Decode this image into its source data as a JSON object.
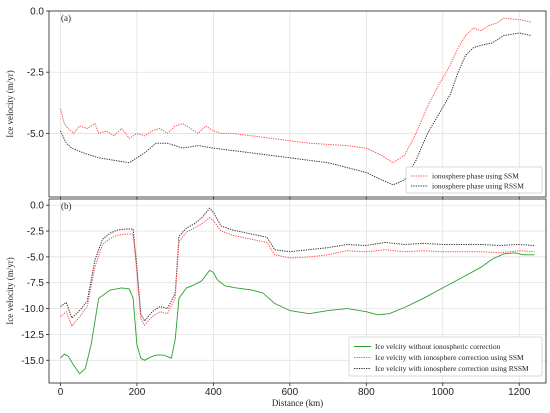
{
  "chart_data": [
    {
      "panel": "(a)",
      "type": "line",
      "xlabel": "",
      "ylabel": "Ice velocity (m/yr)",
      "xlim": [
        -30,
        1270
      ],
      "ylim": [
        -7.6,
        0.0
      ],
      "yticks": [
        0.0,
        -2.5,
        -5.0
      ],
      "ytick_labels": [
        "0.0",
        "-2.5",
        "-5.0"
      ],
      "xticks": [
        0,
        200,
        400,
        600,
        800,
        1000,
        1200
      ],
      "grid": true,
      "legend_position": "lower-right",
      "series": [
        {
          "name": "ionosphere phase using SSM",
          "color": "#ff4d4d",
          "style": "dotted",
          "points": [
            [
              0,
              -4.0
            ],
            [
              10,
              -4.6
            ],
            [
              20,
              -4.8
            ],
            [
              35,
              -5.0
            ],
            [
              50,
              -4.7
            ],
            [
              70,
              -4.8
            ],
            [
              90,
              -4.6
            ],
            [
              100,
              -5.0
            ],
            [
              120,
              -4.9
            ],
            [
              140,
              -5.1
            ],
            [
              160,
              -4.8
            ],
            [
              180,
              -5.2
            ],
            [
              200,
              -5.0
            ],
            [
              220,
              -5.1
            ],
            [
              240,
              -4.9
            ],
            [
              260,
              -4.8
            ],
            [
              280,
              -5.0
            ],
            [
              300,
              -4.7
            ],
            [
              320,
              -4.6
            ],
            [
              340,
              -4.8
            ],
            [
              360,
              -5.0
            ],
            [
              380,
              -4.7
            ],
            [
              400,
              -4.9
            ],
            [
              420,
              -5.0
            ],
            [
              450,
              -5.0
            ],
            [
              500,
              -5.1
            ],
            [
              550,
              -5.2
            ],
            [
              600,
              -5.3
            ],
            [
              650,
              -5.4
            ],
            [
              700,
              -5.45
            ],
            [
              750,
              -5.5
            ],
            [
              800,
              -5.6
            ],
            [
              840,
              -5.9
            ],
            [
              870,
              -6.2
            ],
            [
              900,
              -5.9
            ],
            [
              930,
              -5.0
            ],
            [
              960,
              -3.9
            ],
            [
              990,
              -3.0
            ],
            [
              1020,
              -2.2
            ],
            [
              1040,
              -1.5
            ],
            [
              1060,
              -1.0
            ],
            [
              1080,
              -0.7
            ],
            [
              1100,
              -0.8
            ],
            [
              1120,
              -0.6
            ],
            [
              1140,
              -0.5
            ],
            [
              1160,
              -0.3
            ],
            [
              1200,
              -0.35
            ],
            [
              1230,
              -0.45
            ]
          ]
        },
        {
          "name": "ionosphere phase using RSSM",
          "color": "#333333",
          "style": "dotted",
          "points": [
            [
              0,
              -4.9
            ],
            [
              15,
              -5.4
            ],
            [
              30,
              -5.6
            ],
            [
              60,
              -5.8
            ],
            [
              100,
              -6.0
            ],
            [
              140,
              -6.1
            ],
            [
              180,
              -6.2
            ],
            [
              220,
              -5.8
            ],
            [
              250,
              -5.4
            ],
            [
              280,
              -5.4
            ],
            [
              320,
              -5.6
            ],
            [
              360,
              -5.5
            ],
            [
              400,
              -5.6
            ],
            [
              450,
              -5.7
            ],
            [
              500,
              -5.8
            ],
            [
              550,
              -5.9
            ],
            [
              600,
              -6.0
            ],
            [
              650,
              -6.1
            ],
            [
              700,
              -6.2
            ],
            [
              750,
              -6.4
            ],
            [
              800,
              -6.6
            ],
            [
              840,
              -6.9
            ],
            [
              870,
              -7.1
            ],
            [
              900,
              -6.9
            ],
            [
              930,
              -6.1
            ],
            [
              960,
              -5.0
            ],
            [
              990,
              -4.2
            ],
            [
              1020,
              -3.4
            ],
            [
              1040,
              -2.5
            ],
            [
              1060,
              -1.8
            ],
            [
              1080,
              -1.5
            ],
            [
              1100,
              -1.4
            ],
            [
              1130,
              -1.3
            ],
            [
              1160,
              -1.0
            ],
            [
              1200,
              -0.9
            ],
            [
              1230,
              -1.0
            ]
          ]
        }
      ]
    },
    {
      "panel": "(b)",
      "type": "line",
      "xlabel": "Distance (km)",
      "ylabel": "Ice velocity (m/yr)",
      "xlim": [
        -30,
        1270
      ],
      "ylim": [
        -17.2,
        0.6
      ],
      "yticks": [
        0.0,
        -2.5,
        -5.0,
        -7.5,
        -10.0,
        -12.5,
        -15.0
      ],
      "ytick_labels": [
        "0.0",
        "-2.5",
        "-5.0",
        "-7.5",
        "-10.0",
        "-12.5",
        "-15.0"
      ],
      "xticks": [
        0,
        200,
        400,
        600,
        800,
        1000,
        1200
      ],
      "xtick_labels": [
        "0",
        "200",
        "400",
        "600",
        "800",
        "1000",
        "1200"
      ],
      "grid": true,
      "legend_position": "lower-right",
      "series": [
        {
          "name": "Ice velcity without ionospheric correction",
          "color": "#2ca02c",
          "style": "solid",
          "points": [
            [
              0,
              -14.8
            ],
            [
              10,
              -14.4
            ],
            [
              20,
              -14.6
            ],
            [
              35,
              -15.5
            ],
            [
              50,
              -16.3
            ],
            [
              65,
              -15.8
            ],
            [
              80,
              -13.5
            ],
            [
              100,
              -9.0
            ],
            [
              130,
              -8.2
            ],
            [
              160,
              -8.0
            ],
            [
              180,
              -8.1
            ],
            [
              190,
              -9.0
            ],
            [
              200,
              -13.5
            ],
            [
              210,
              -14.8
            ],
            [
              220,
              -15.0
            ],
            [
              235,
              -14.7
            ],
            [
              250,
              -14.5
            ],
            [
              270,
              -14.5
            ],
            [
              290,
              -14.8
            ],
            [
              300,
              -13.0
            ],
            [
              310,
              -9.0
            ],
            [
              330,
              -8.0
            ],
            [
              350,
              -7.7
            ],
            [
              370,
              -7.3
            ],
            [
              390,
              -6.3
            ],
            [
              400,
              -6.5
            ],
            [
              410,
              -7.2
            ],
            [
              430,
              -7.8
            ],
            [
              460,
              -8.0
            ],
            [
              500,
              -8.2
            ],
            [
              530,
              -8.5
            ],
            [
              560,
              -9.5
            ],
            [
              600,
              -10.2
            ],
            [
              650,
              -10.5
            ],
            [
              700,
              -10.2
            ],
            [
              750,
              -10.0
            ],
            [
              800,
              -10.3
            ],
            [
              830,
              -10.6
            ],
            [
              860,
              -10.5
            ],
            [
              900,
              -9.9
            ],
            [
              950,
              -9.0
            ],
            [
              1000,
              -8.0
            ],
            [
              1050,
              -7.0
            ],
            [
              1100,
              -6.0
            ],
            [
              1130,
              -5.2
            ],
            [
              1160,
              -4.7
            ],
            [
              1190,
              -4.6
            ],
            [
              1210,
              -4.8
            ],
            [
              1240,
              -4.8
            ]
          ]
        },
        {
          "name": "Ice velcity with ionosphere correction using SSM",
          "color": "#ff4d4d",
          "style": "dotted",
          "points": [
            [
              0,
              -10.8
            ],
            [
              15,
              -10.3
            ],
            [
              30,
              -11.7
            ],
            [
              50,
              -10.8
            ],
            [
              70,
              -9.8
            ],
            [
              90,
              -6.0
            ],
            [
              110,
              -3.8
            ],
            [
              130,
              -3.2
            ],
            [
              150,
              -2.9
            ],
            [
              170,
              -2.8
            ],
            [
              190,
              -2.8
            ],
            [
              200,
              -6.5
            ],
            [
              210,
              -11.0
            ],
            [
              220,
              -11.6
            ],
            [
              240,
              -10.8
            ],
            [
              260,
              -10.3
            ],
            [
              280,
              -10.5
            ],
            [
              300,
              -9.0
            ],
            [
              310,
              -3.5
            ],
            [
              330,
              -2.6
            ],
            [
              350,
              -2.2
            ],
            [
              370,
              -1.8
            ],
            [
              390,
              -1.2
            ],
            [
              400,
              -1.5
            ],
            [
              420,
              -2.5
            ],
            [
              450,
              -2.9
            ],
            [
              500,
              -3.3
            ],
            [
              540,
              -3.6
            ],
            [
              560,
              -4.8
            ],
            [
              600,
              -5.1
            ],
            [
              650,
              -5.0
            ],
            [
              700,
              -4.8
            ],
            [
              750,
              -4.4
            ],
            [
              800,
              -4.5
            ],
            [
              850,
              -4.3
            ],
            [
              900,
              -4.5
            ],
            [
              950,
              -4.4
            ],
            [
              1000,
              -4.5
            ],
            [
              1050,
              -4.5
            ],
            [
              1100,
              -4.5
            ],
            [
              1150,
              -4.6
            ],
            [
              1200,
              -4.4
            ],
            [
              1240,
              -4.5
            ]
          ]
        },
        {
          "name": "Ice velcity with ionosphere correction using RSSM",
          "color": "#333333",
          "style": "dotted",
          "points": [
            [
              0,
              -9.8
            ],
            [
              15,
              -9.4
            ],
            [
              30,
              -10.9
            ],
            [
              50,
              -10.2
            ],
            [
              70,
              -9.3
            ],
            [
              90,
              -5.3
            ],
            [
              110,
              -3.3
            ],
            [
              130,
              -2.7
            ],
            [
              150,
              -2.4
            ],
            [
              170,
              -2.3
            ],
            [
              190,
              -2.3
            ],
            [
              200,
              -6.0
            ],
            [
              210,
              -10.5
            ],
            [
              220,
              -11.2
            ],
            [
              240,
              -10.3
            ],
            [
              260,
              -9.8
            ],
            [
              280,
              -10.0
            ],
            [
              300,
              -8.5
            ],
            [
              310,
              -3.0
            ],
            [
              330,
              -2.2
            ],
            [
              350,
              -1.8
            ],
            [
              370,
              -1.2
            ],
            [
              390,
              -0.3
            ],
            [
              400,
              -0.7
            ],
            [
              420,
              -2.0
            ],
            [
              450,
              -2.4
            ],
            [
              500,
              -2.8
            ],
            [
              540,
              -3.1
            ],
            [
              560,
              -4.3
            ],
            [
              600,
              -4.5
            ],
            [
              650,
              -4.3
            ],
            [
              700,
              -4.1
            ],
            [
              750,
              -3.8
            ],
            [
              800,
              -3.9
            ],
            [
              850,
              -3.6
            ],
            [
              900,
              -3.8
            ],
            [
              950,
              -3.7
            ],
            [
              1000,
              -3.8
            ],
            [
              1050,
              -3.8
            ],
            [
              1100,
              -3.8
            ],
            [
              1150,
              -3.9
            ],
            [
              1200,
              -3.8
            ],
            [
              1240,
              -3.9
            ]
          ]
        }
      ]
    }
  ]
}
